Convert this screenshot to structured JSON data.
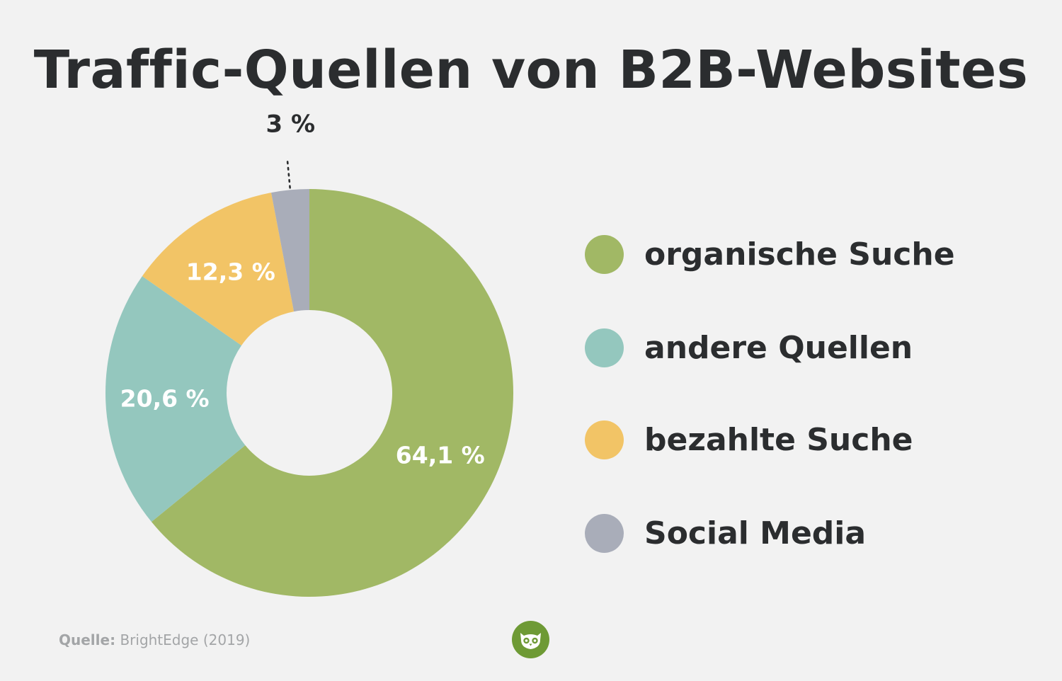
{
  "title": "Traffic-Quellen von B2B-Websites",
  "source": {
    "label": "Quelle:",
    "text": "BrightEdge (2019)"
  },
  "logo": {
    "icon": "owl-icon",
    "color": "#6e9a35"
  },
  "chart_data": {
    "type": "pie",
    "variant": "donut",
    "title": "Traffic-Quellen von B2B-Websites",
    "legend_position": "right",
    "series": [
      {
        "name": "organische Suche",
        "value": 64.1,
        "label": "64,1 %",
        "color": "#a1b865",
        "label_color": "#ffffff"
      },
      {
        "name": "andere Quellen",
        "value": 20.6,
        "label": "20,6 %",
        "color": "#94c7be",
        "label_color": "#ffffff"
      },
      {
        "name": "bezahlte Suche",
        "value": 12.3,
        "label": "12,3 %",
        "color": "#f2c466",
        "label_color": "#ffffff"
      },
      {
        "name": "Social Media",
        "value": 3,
        "label": "3 %",
        "color": "#a9adb9",
        "label_color": "#2b2d2f",
        "label_outside": true
      }
    ]
  }
}
